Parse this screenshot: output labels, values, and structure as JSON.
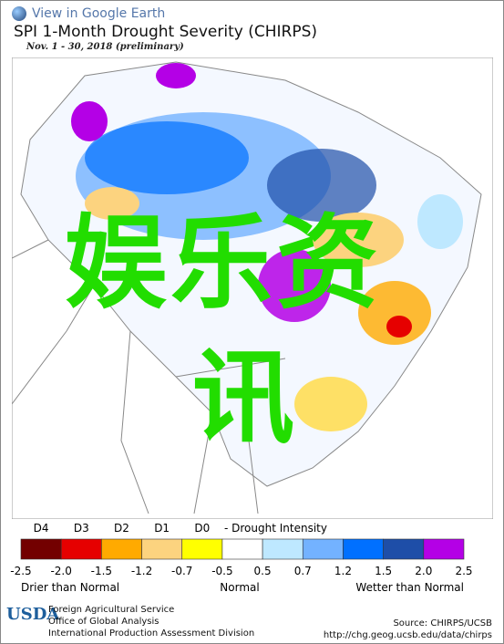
{
  "header": {
    "link": "View in Google Earth",
    "title": "SPI 1-Month Drought Severity (CHIRPS)",
    "subtitle": "Nov. 1 - 30, 2018 (preliminary)"
  },
  "overlay": {
    "line1": "娱乐资",
    "line2": "讯"
  },
  "legend": {
    "drought_labels": [
      "D4",
      "D3",
      "D2",
      "D1",
      "D0"
    ],
    "drought_caption": "- Drought Intensity",
    "colors": [
      "#730000",
      "#e60000",
      "#ffaa00",
      "#fcd37f",
      "#ffff00",
      "#ffffff",
      "#bee8ff",
      "#73b2ff",
      "#0070ff",
      "#1e4ea8",
      "#b400e6"
    ],
    "ticks": [
      "-2.5",
      "-2.0",
      "-1.5",
      "-1.2",
      "-0.7",
      "-0.5",
      "0.5",
      "0.7",
      "1.2",
      "1.5",
      "2.0",
      "2.5"
    ],
    "captions": [
      "Drier than Normal",
      "Normal",
      "Wetter than Normal"
    ]
  },
  "footer": {
    "agency": "USDA",
    "lines": [
      "Foreign Agricultural Service",
      "Office of Global Analysis",
      "International Production Assessment Division"
    ],
    "source": "Source: CHIRPS/UCSB",
    "url": "http://chg.geog.ucsb.edu/data/chirps"
  }
}
